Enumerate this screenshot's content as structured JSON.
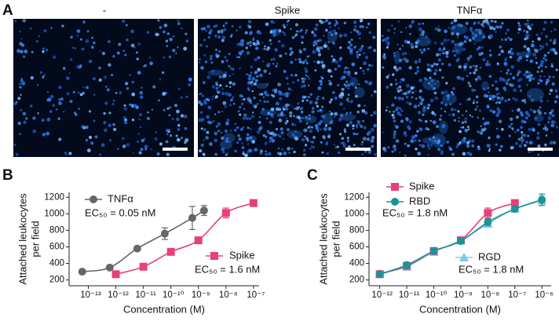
{
  "panel_letters": [
    "A",
    "B",
    "C"
  ],
  "image_titles": [
    "-",
    "Spike",
    "TNFα"
  ],
  "chart_data": [
    {
      "type": "scatter",
      "xlabel": "Concentration (M)",
      "ylabel": [
        "Attached leukocytes",
        "per field"
      ],
      "xscale": "log",
      "xlim": [
        2e-14,
        1.6e-07
      ],
      "ylim": [
        130,
        1260
      ],
      "xticks": [
        {
          "value": 1e-13,
          "label": "10⁻¹³"
        },
        {
          "value": 1e-12,
          "label": "10⁻¹²"
        },
        {
          "value": 1e-11,
          "label": "10⁻¹¹"
        },
        {
          "value": 1e-10,
          "label": "10⁻¹⁰"
        },
        {
          "value": 1e-09,
          "label": "10⁻⁹"
        },
        {
          "value": 1e-08,
          "label": "10⁻⁸"
        },
        {
          "value": 1e-07,
          "label": "10⁻⁷"
        }
      ],
      "yticks": [
        200,
        400,
        600,
        800,
        1000,
        1200
      ],
      "series": [
        {
          "name": "TNFα",
          "color": "#666666",
          "marker": "circle",
          "note": "EC₅₀ = 0.05 nM",
          "x": [
            6e-14,
            6e-13,
            6e-12,
            6e-11,
            6e-10,
            1.6e-09
          ],
          "values": [
            300,
            350,
            580,
            760,
            950,
            1040
          ],
          "errors": [
            15,
            15,
            20,
            70,
            140,
            60
          ]
        },
        {
          "name": "Spike",
          "color": "#e8407a",
          "marker": "square",
          "note": "EC₅₀ = 1.6 nM",
          "x": [
            1e-12,
            1e-11,
            1e-10,
            1e-09,
            1e-08,
            1e-07
          ],
          "values": [
            270,
            360,
            540,
            680,
            1010,
            1130
          ],
          "errors": [
            20,
            20,
            25,
            30,
            60,
            40
          ]
        }
      ]
    },
    {
      "type": "scatter",
      "xlabel": "Concentration (M)",
      "ylabel": [
        "Attached leukocytes",
        "per field"
      ],
      "xscale": "log",
      "xlim": [
        4e-13,
        2.2e-06
      ],
      "ylim": [
        130,
        1260
      ],
      "xticks": [
        {
          "value": 1e-12,
          "label": "10⁻¹²"
        },
        {
          "value": 1e-11,
          "label": "10⁻¹¹"
        },
        {
          "value": 1e-10,
          "label": "10⁻¹⁰"
        },
        {
          "value": 1e-09,
          "label": "10⁻⁹"
        },
        {
          "value": 1e-08,
          "label": "10⁻⁸"
        },
        {
          "value": 1e-07,
          "label": "10⁻⁷"
        },
        {
          "value": 1e-06,
          "label": "10⁻⁶"
        }
      ],
      "yticks": [
        200,
        400,
        600,
        800,
        1000,
        1200
      ],
      "series": [
        {
          "name": "RGD",
          "color": "#7ec8ea",
          "marker": "triangle",
          "note": "EC₅₀ = 1.8 nM",
          "x": [
            1e-12,
            1e-11,
            1e-10,
            1e-09,
            1e-08,
            1e-07,
            1e-06
          ],
          "values": [
            280,
            360,
            540,
            680,
            880,
            1060,
            1160
          ],
          "errors": [
            20,
            20,
            25,
            30,
            40,
            30,
            60
          ]
        },
        {
          "name": "Spike",
          "color": "#e8407a",
          "marker": "square",
          "x": [
            1e-12,
            1e-11,
            1e-10,
            1e-09,
            1e-08,
            1e-07
          ],
          "values": [
            270,
            370,
            550,
            680,
            1010,
            1130
          ],
          "errors": [
            20,
            20,
            25,
            30,
            60,
            40
          ]
        },
        {
          "name": "RBD",
          "color": "#1a9494",
          "marker": "circle",
          "note": "EC₅₀ = 1.8 nM",
          "x": [
            1e-12,
            1e-11,
            1e-10,
            1e-09,
            1e-08,
            1e-07,
            1e-06
          ],
          "values": [
            270,
            380,
            550,
            670,
            900,
            1060,
            1170
          ],
          "errors": [
            20,
            20,
            25,
            30,
            40,
            30,
            70
          ]
        }
      ]
    }
  ]
}
